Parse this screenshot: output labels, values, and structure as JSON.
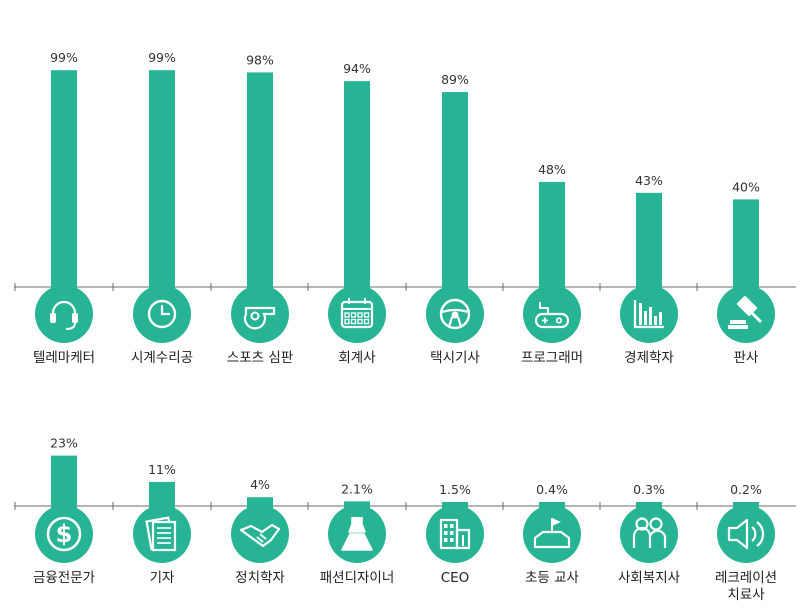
{
  "chart_data": [
    {
      "type": "bar",
      "categories": [
        "텔레마케터",
        "시계수리공",
        "스포츠 심판",
        "회계사",
        "택시기사",
        "프로그래머",
        "경제학자",
        "판사"
      ],
      "values": [
        99,
        99,
        98,
        94,
        89,
        48,
        43,
        40
      ],
      "value_labels": [
        "99%",
        "99%",
        "98%",
        "94%",
        "89%",
        "48%",
        "43%",
        "40%"
      ],
      "icons": [
        "headset-icon",
        "clock-icon",
        "whistle-icon",
        "calculator-icon",
        "steering-wheel-icon",
        "gamepad-icon",
        "bar-chart-icon",
        "gavel-icon"
      ],
      "ylim": [
        0,
        100
      ],
      "color": "#27b494"
    },
    {
      "type": "bar",
      "categories": [
        "금융전문가",
        "기자",
        "정치학자",
        "패션디자이너",
        "CEO",
        "초등 교사",
        "사회복지사",
        "레크레이션 치료사"
      ],
      "values": [
        23,
        11,
        4,
        2.1,
        1.5,
        0.4,
        0.3,
        0.2
      ],
      "value_labels": [
        "23%",
        "11%",
        "4%",
        "2.1%",
        "1.5%",
        "0.4%",
        "0.3%",
        "0.2%"
      ],
      "icons": [
        "globe-dollar-icon",
        "newspaper-icon",
        "handshake-icon",
        "dress-icon",
        "building-icon",
        "school-flag-icon",
        "people-icon",
        "speaker-icon"
      ],
      "ylim": [
        0,
        100
      ],
      "color": "#27b494"
    }
  ]
}
